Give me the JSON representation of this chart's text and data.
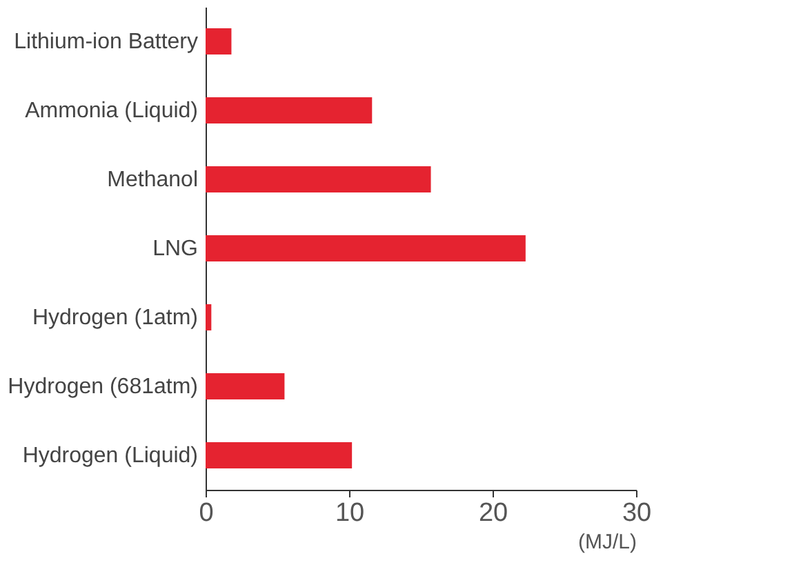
{
  "chart_data": {
    "type": "bar",
    "orientation": "horizontal",
    "categories": [
      "Lithium-ion Battery",
      "Ammonia (Liquid)",
      "Methanol",
      "LNG",
      "Hydrogen (1atm)",
      "Hydrogen (681atm)",
      "Hydrogen (Liquid)"
    ],
    "values": [
      1.8,
      11.6,
      15.7,
      22.3,
      0.4,
      5.5,
      10.2
    ],
    "color": "#e52330",
    "xlim": [
      0,
      30
    ],
    "xticks": [
      0,
      10,
      20,
      30
    ],
    "xlabel": "(MJ/L)",
    "grid": false
  }
}
